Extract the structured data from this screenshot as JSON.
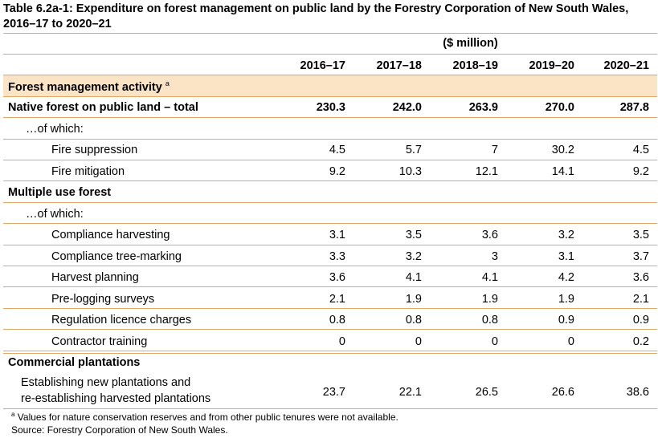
{
  "title": "Table 6.2a-1: Expenditure on forest management on public land by the Forestry Corporation of New South Wales, 2016–17 to 2020–21",
  "units": "($ million)",
  "columns": [
    "2016–17",
    "2017–18",
    "2018–19",
    "2019–20",
    "2020–21"
  ],
  "section_header": "Forest management activity",
  "section_header_note": "a",
  "rows": [
    {
      "label": "Native forest on public land – total",
      "values": [
        "230.3",
        "242.0",
        "263.9",
        "270.0",
        "287.8"
      ]
    },
    {
      "label": "…of which:",
      "values": [
        "",
        "",
        "",
        "",
        ""
      ]
    },
    {
      "label": "Fire suppression",
      "values": [
        "4.5",
        "5.7",
        "7",
        "30.2",
        "4.5"
      ]
    },
    {
      "label": "Fire mitigation",
      "values": [
        "9.2",
        "10.3",
        "12.1",
        "14.1",
        "9.2"
      ]
    },
    {
      "label": "Multiple use forest",
      "values": [
        "",
        "",
        "",
        "",
        ""
      ]
    },
    {
      "label": "…of which:",
      "values": [
        "",
        "",
        "",
        "",
        ""
      ]
    },
    {
      "label": "Compliance harvesting",
      "values": [
        "3.1",
        "3.5",
        "3.6",
        "3.2",
        "3.5"
      ]
    },
    {
      "label": "Compliance tree-marking",
      "values": [
        "3.3",
        "3.2",
        "3",
        "3.1",
        "3.7"
      ]
    },
    {
      "label": "Harvest planning",
      "values": [
        "3.6",
        "4.1",
        "4.1",
        "4.2",
        "3.6"
      ]
    },
    {
      "label": "Pre-logging surveys",
      "values": [
        "2.1",
        "1.9",
        "1.9",
        "1.9",
        "2.1"
      ]
    },
    {
      "label": "Regulation licence charges",
      "values": [
        "0.8",
        "0.8",
        "0.8",
        "0.9",
        "0.9"
      ]
    },
    {
      "label": "Contractor training",
      "values": [
        "0",
        "0",
        "0",
        "0",
        "0.2"
      ]
    },
    {
      "label": "Commercial plantations",
      "values": [
        "",
        "",
        "",
        "",
        ""
      ]
    }
  ],
  "last_row": {
    "label_line1": "Establishing new plantations and",
    "label_line2": "re-establishing harvested plantations",
    "values": [
      "23.7",
      "22.1",
      "26.5",
      "26.6",
      "38.6"
    ]
  },
  "footnote_mark": "a",
  "footnote": "Values for nature conservation reserves and from other public tenures were not available.",
  "source": "Source: Forestry Corporation of New South Wales."
}
